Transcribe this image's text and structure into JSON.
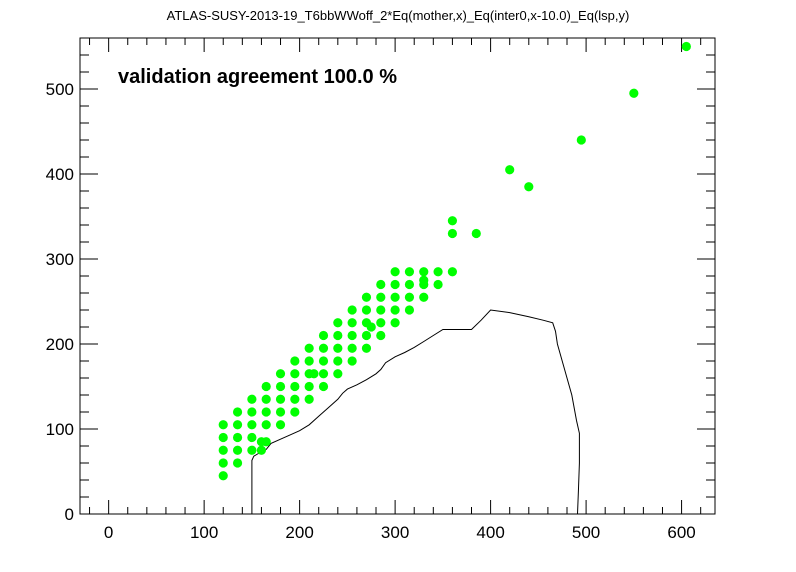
{
  "chart_data": {
    "type": "scatter",
    "title": "ATLAS-SUSY-2013-19_T6bbWWoff_2*Eq(mother,x)_Eq(inter0,x-10.0)_Eq(lsp,y)",
    "annotation": "validation agreement 100.0 %",
    "xlabel": "",
    "ylabel": "",
    "xlim": [
      -30,
      635
    ],
    "ylim": [
      0,
      560
    ],
    "x_ticks": [
      0,
      100,
      200,
      300,
      400,
      500,
      600
    ],
    "y_ticks": [
      0,
      100,
      200,
      300,
      400,
      500
    ],
    "grid": false,
    "colors": {
      "points": "#00ff00",
      "contour": "#000000",
      "frame": "#000000",
      "background": "#ffffff"
    },
    "series": [
      {
        "type": "scatter",
        "points": [
          [
            120,
            45
          ],
          [
            120,
            60
          ],
          [
            120,
            75
          ],
          [
            120,
            90
          ],
          [
            120,
            105
          ],
          [
            135,
            60
          ],
          [
            135,
            75
          ],
          [
            135,
            90
          ],
          [
            135,
            105
          ],
          [
            135,
            120
          ],
          [
            150,
            75
          ],
          [
            150,
            90
          ],
          [
            150,
            105
          ],
          [
            150,
            120
          ],
          [
            150,
            135
          ],
          [
            160,
            75
          ],
          [
            160,
            85
          ],
          [
            165,
            85
          ],
          [
            165,
            105
          ],
          [
            165,
            120
          ],
          [
            165,
            135
          ],
          [
            165,
            150
          ],
          [
            180,
            105
          ],
          [
            180,
            120
          ],
          [
            180,
            135
          ],
          [
            180,
            150
          ],
          [
            180,
            165
          ],
          [
            195,
            120
          ],
          [
            195,
            135
          ],
          [
            195,
            150
          ],
          [
            195,
            165
          ],
          [
            195,
            180
          ],
          [
            210,
            135
          ],
          [
            210,
            150
          ],
          [
            210,
            165
          ],
          [
            210,
            180
          ],
          [
            210,
            195
          ],
          [
            215,
            165
          ],
          [
            225,
            150
          ],
          [
            225,
            165
          ],
          [
            225,
            180
          ],
          [
            225,
            195
          ],
          [
            225,
            210
          ],
          [
            240,
            165
          ],
          [
            240,
            180
          ],
          [
            240,
            195
          ],
          [
            240,
            210
          ],
          [
            240,
            225
          ],
          [
            255,
            180
          ],
          [
            255,
            195
          ],
          [
            255,
            210
          ],
          [
            255,
            225
          ],
          [
            255,
            240
          ],
          [
            270,
            195
          ],
          [
            270,
            210
          ],
          [
            270,
            225
          ],
          [
            270,
            240
          ],
          [
            270,
            255
          ],
          [
            275,
            220
          ],
          [
            285,
            210
          ],
          [
            285,
            225
          ],
          [
            285,
            240
          ],
          [
            285,
            255
          ],
          [
            285,
            270
          ],
          [
            300,
            225
          ],
          [
            300,
            240
          ],
          [
            300,
            255
          ],
          [
            300,
            270
          ],
          [
            300,
            285
          ],
          [
            315,
            240
          ],
          [
            315,
            255
          ],
          [
            315,
            270
          ],
          [
            315,
            285
          ],
          [
            330,
            255
          ],
          [
            330,
            270
          ],
          [
            330,
            285
          ],
          [
            330,
            275
          ],
          [
            345,
            270
          ],
          [
            345,
            285
          ],
          [
            360,
            285
          ],
          [
            360,
            330
          ],
          [
            360,
            345
          ],
          [
            385,
            330
          ],
          [
            420,
            405
          ],
          [
            440,
            385
          ],
          [
            495,
            440
          ],
          [
            550,
            495
          ],
          [
            605,
            550
          ]
        ]
      },
      {
        "type": "line",
        "points": [
          [
            150,
            0
          ],
          [
            150,
            63
          ],
          [
            152,
            68
          ],
          [
            155,
            70
          ],
          [
            158,
            72
          ],
          [
            162,
            74
          ],
          [
            165,
            76
          ],
          [
            170,
            83
          ],
          [
            180,
            88
          ],
          [
            190,
            93
          ],
          [
            200,
            98
          ],
          [
            210,
            105
          ],
          [
            220,
            115
          ],
          [
            230,
            125
          ],
          [
            240,
            135
          ],
          [
            245,
            142
          ],
          [
            250,
            147
          ],
          [
            260,
            152
          ],
          [
            270,
            158
          ],
          [
            280,
            165
          ],
          [
            285,
            170
          ],
          [
            290,
            178
          ],
          [
            300,
            185
          ],
          [
            310,
            190
          ],
          [
            320,
            196
          ],
          [
            330,
            203
          ],
          [
            340,
            210
          ],
          [
            350,
            217
          ],
          [
            380,
            217
          ],
          [
            390,
            228
          ],
          [
            400,
            240
          ],
          [
            420,
            237
          ],
          [
            440,
            232
          ],
          [
            455,
            228
          ],
          [
            465,
            225
          ],
          [
            468,
            215
          ],
          [
            470,
            200
          ],
          [
            475,
            180
          ],
          [
            480,
            160
          ],
          [
            485,
            140
          ],
          [
            490,
            110
          ],
          [
            493,
            95
          ],
          [
            493,
            60
          ],
          [
            492,
            30
          ],
          [
            491,
            0
          ]
        ]
      }
    ]
  }
}
